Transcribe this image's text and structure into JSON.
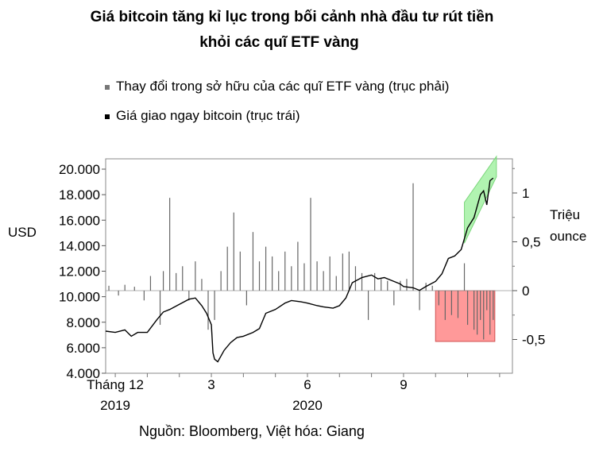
{
  "title_line1": "Giá bitcoin tăng kỉ lục trong bối cảnh nhà đầu tư rút tiền",
  "title_line2": "khỏi các quĩ ETF vàng",
  "legend": [
    {
      "label": "Thay đổi trong sở hữu của các quĩ ETF vàng (trục phải)",
      "color": "#777777"
    },
    {
      "label": "Giá giao ngay bitcoin (trục trái)",
      "color": "#000000"
    }
  ],
  "source": "Nguồn: Bloomberg, Việt hóa: Giang",
  "chart_data": {
    "type": "bar+line",
    "left_axis": {
      "label": "USD",
      "min": 4000,
      "max": 20000,
      "ticks": [
        "20.000",
        "18.000",
        "16.000",
        "14.000",
        "12.000",
        "10.000",
        "8.000",
        "6.000",
        "4.000"
      ]
    },
    "right_axis": {
      "label_line1": "Triệu",
      "label_line2": "ounce",
      "min": -0.55,
      "max": 1.3,
      "ticks": [
        "1",
        "0,5",
        "0",
        "-0,5"
      ]
    },
    "x_axis": {
      "month_ticks": [
        {
          "label": "Tháng 12",
          "month": 0
        },
        {
          "label": "3",
          "month": 3
        },
        {
          "label": "6",
          "month": 6
        },
        {
          "label": "9",
          "month": 9
        }
      ],
      "year_labels": [
        {
          "label": "2019",
          "month": 0
        },
        {
          "label": "2020",
          "month": 6
        }
      ],
      "range_months": [
        -0.3,
        12.4
      ]
    },
    "series": [
      {
        "axis": "left",
        "kind": "line",
        "points": [
          [
            -0.3,
            7300
          ],
          [
            0,
            7200
          ],
          [
            0.3,
            7400
          ],
          [
            0.5,
            6900
          ],
          [
            0.7,
            7200
          ],
          [
            1,
            7200
          ],
          [
            1.3,
            8200
          ],
          [
            1.5,
            8800
          ],
          [
            1.7,
            9000
          ],
          [
            2,
            9400
          ],
          [
            2.3,
            9800
          ],
          [
            2.5,
            9900
          ],
          [
            2.7,
            9300
          ],
          [
            2.85,
            8700
          ],
          [
            3,
            7800
          ],
          [
            3.05,
            5600
          ],
          [
            3.1,
            5100
          ],
          [
            3.2,
            4900
          ],
          [
            3.4,
            5800
          ],
          [
            3.6,
            6400
          ],
          [
            3.8,
            6800
          ],
          [
            4,
            6900
          ],
          [
            4.3,
            7200
          ],
          [
            4.5,
            7500
          ],
          [
            4.7,
            8700
          ],
          [
            5,
            9000
          ],
          [
            5.3,
            9500
          ],
          [
            5.5,
            9700
          ],
          [
            5.8,
            9600
          ],
          [
            6,
            9500
          ],
          [
            6.3,
            9300
          ],
          [
            6.5,
            9200
          ],
          [
            6.8,
            9100
          ],
          [
            7,
            9300
          ],
          [
            7.2,
            9900
          ],
          [
            7.4,
            11100
          ],
          [
            7.7,
            11500
          ],
          [
            8,
            11700
          ],
          [
            8.2,
            11400
          ],
          [
            8.4,
            11500
          ],
          [
            8.6,
            11300
          ],
          [
            8.9,
            11000
          ],
          [
            9,
            10800
          ],
          [
            9.3,
            10700
          ],
          [
            9.5,
            10500
          ],
          [
            9.7,
            10800
          ],
          [
            10,
            11200
          ],
          [
            10.2,
            11800
          ],
          [
            10.4,
            13000
          ],
          [
            10.6,
            13200
          ],
          [
            10.8,
            13700
          ],
          [
            11,
            15400
          ],
          [
            11.2,
            16200
          ],
          [
            11.4,
            18000
          ],
          [
            11.5,
            18300
          ],
          [
            11.6,
            17200
          ],
          [
            11.7,
            19100
          ],
          [
            11.8,
            19300
          ]
        ]
      },
      {
        "axis": "right",
        "kind": "bar",
        "values": [
          [
            -0.2,
            0.05
          ],
          [
            0.1,
            -0.05
          ],
          [
            0.3,
            0.06
          ],
          [
            0.6,
            0.04
          ],
          [
            0.9,
            -0.1
          ],
          [
            1.1,
            0.15
          ],
          [
            1.4,
            -0.35
          ],
          [
            1.5,
            0.2
          ],
          [
            1.7,
            0.95
          ],
          [
            1.9,
            0.18
          ],
          [
            2.1,
            0.25
          ],
          [
            2.3,
            -0.1
          ],
          [
            2.5,
            0.3
          ],
          [
            2.7,
            0.12
          ],
          [
            2.9,
            -0.4
          ],
          [
            3.1,
            -0.3
          ],
          [
            3.3,
            0.2
          ],
          [
            3.5,
            0.45
          ],
          [
            3.7,
            0.8
          ],
          [
            3.9,
            0.4
          ],
          [
            4.1,
            -0.15
          ],
          [
            4.3,
            0.6
          ],
          [
            4.5,
            0.3
          ],
          [
            4.7,
            0.45
          ],
          [
            4.9,
            0.35
          ],
          [
            5.1,
            0.2
          ],
          [
            5.3,
            0.4
          ],
          [
            5.5,
            0.25
          ],
          [
            5.7,
            0.5
          ],
          [
            5.9,
            0.28
          ],
          [
            6.1,
            0.95
          ],
          [
            6.3,
            0.3
          ],
          [
            6.5,
            0.2
          ],
          [
            6.7,
            0.35
          ],
          [
            6.9,
            0.15
          ],
          [
            7.1,
            0.38
          ],
          [
            7.3,
            0.4
          ],
          [
            7.5,
            0.25
          ],
          [
            7.7,
            0.18
          ],
          [
            7.9,
            -0.3
          ],
          [
            8.1,
            0.18
          ],
          [
            8.3,
            0.12
          ],
          [
            8.5,
            0.1
          ],
          [
            8.7,
            -0.15
          ],
          [
            8.9,
            0.1
          ],
          [
            9.1,
            0.12
          ],
          [
            9.3,
            1.1
          ],
          [
            9.5,
            -0.2
          ],
          [
            9.7,
            0.08
          ],
          [
            9.9,
            0.05
          ],
          [
            10.1,
            -0.15
          ],
          [
            10.3,
            -0.3
          ],
          [
            10.5,
            -0.25
          ],
          [
            10.7,
            -0.28
          ],
          [
            10.9,
            0.28
          ],
          [
            11,
            -0.35
          ],
          [
            11.2,
            -0.4
          ],
          [
            11.3,
            -0.45
          ],
          [
            11.4,
            -0.3
          ],
          [
            11.5,
            -0.5
          ],
          [
            11.6,
            -0.2
          ],
          [
            11.7,
            -0.45
          ],
          [
            11.8,
            -0.3
          ]
        ]
      }
    ],
    "annotations": [
      {
        "kind": "green_band",
        "color": "#90ee90"
      },
      {
        "kind": "red_box",
        "color": "#ff8080"
      }
    ]
  }
}
